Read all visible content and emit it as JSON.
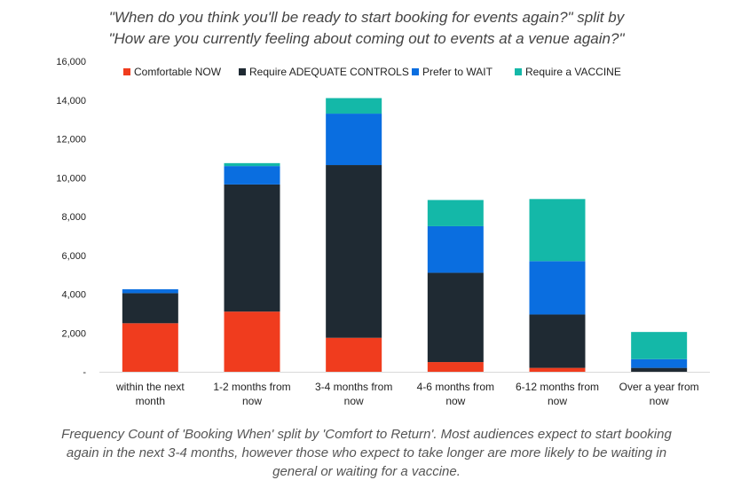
{
  "title_lines": [
    "\"When do you think you'll be ready to start booking for events again?\" split by",
    "\"How are you currently feeling about coming out to events at a venue again?\""
  ],
  "caption_lines": [
    "Frequency Count of 'Booking When' split by 'Comfort to Return'. Most audiences expect to start booking",
    "again in the next 3-4 months, however those who expect to take  longer are more likely to be waiting in",
    "general or waiting for a vaccine."
  ],
  "chart_data": {
    "type": "bar",
    "stacked": true,
    "categories": [
      [
        "within the next",
        "month"
      ],
      [
        "1-2 months from",
        "now"
      ],
      [
        "3-4 months from",
        "now"
      ],
      [
        "4-6 months from",
        "now"
      ],
      [
        "6-12 months from",
        "now"
      ],
      [
        "Over a year from",
        "now"
      ]
    ],
    "series": [
      {
        "name": "Comfortable NOW",
        "color": "#f03c1e",
        "values": [
          2500,
          3100,
          1750,
          500,
          200,
          0
        ]
      },
      {
        "name": "Require ADEQUATE CONTROLS",
        "color": "#1f2a33",
        "values": [
          1550,
          6550,
          8900,
          4600,
          2750,
          200
        ]
      },
      {
        "name": "Prefer to WAIT",
        "color": "#0a6ee0",
        "values": [
          200,
          950,
          2650,
          2400,
          2750,
          450
        ]
      },
      {
        "name": "Require a VACCINE",
        "color": "#14b8a8",
        "values": [
          0,
          150,
          800,
          1350,
          3200,
          1400
        ]
      }
    ],
    "ylim": [
      0,
      16000
    ],
    "yticks": [
      0,
      2000,
      4000,
      6000,
      8000,
      10000,
      12000,
      14000,
      16000
    ],
    "ytick_labels": [
      "-",
      "2,000",
      "4,000",
      "6,000",
      "8,000",
      "10,000",
      "12,000",
      "14,000",
      "16,000"
    ],
    "legend_position": "top",
    "grid": false
  }
}
